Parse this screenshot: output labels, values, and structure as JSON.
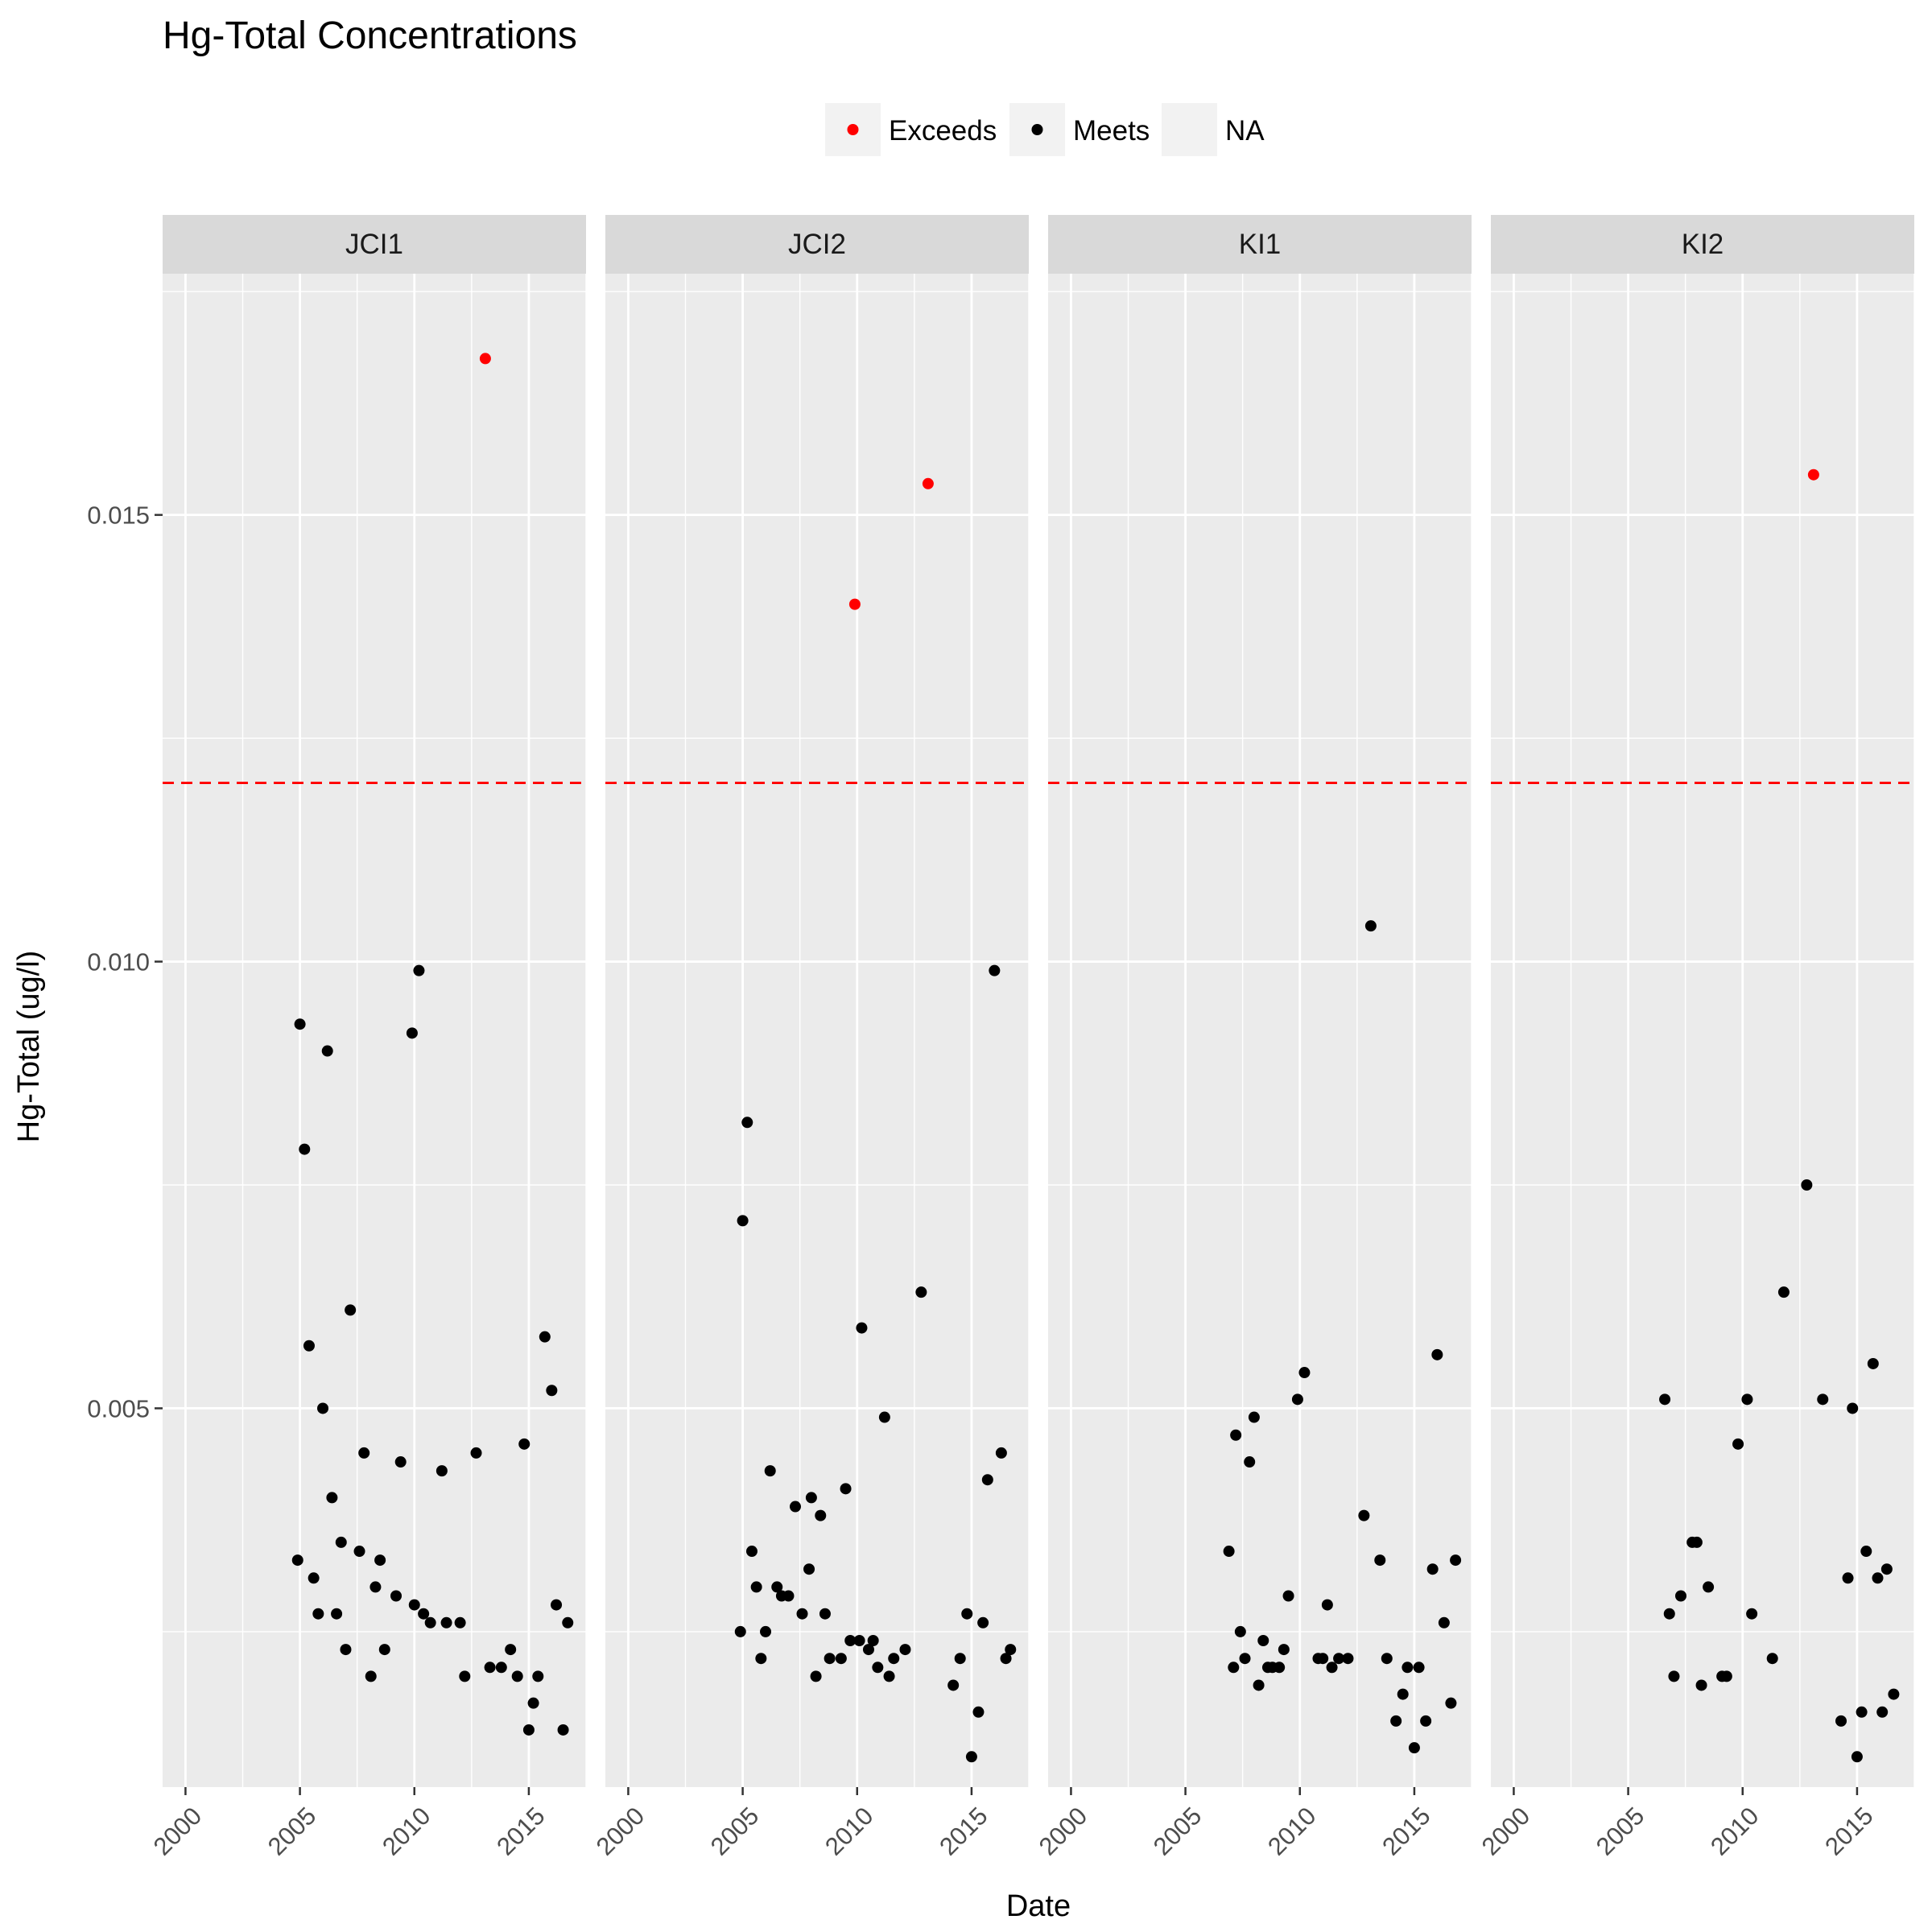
{
  "chart_data": {
    "type": "scatter",
    "title": "Hg-Total Concentrations",
    "xlabel": "Date",
    "ylabel": "Hg-Total (ug/l)",
    "xlim": [
      1999,
      2017.5
    ],
    "ylim": [
      0.00076,
      0.0177
    ],
    "x_ticks": [
      2000,
      2005,
      2010,
      2015
    ],
    "y_ticks": [
      0.005,
      0.01,
      0.015
    ],
    "y_tick_labels": [
      "0.005",
      "0.010",
      "0.015"
    ],
    "threshold": 0.012,
    "grid": true,
    "legend": {
      "position": "top",
      "items": [
        {
          "label": "Exceeds",
          "color": "#ff0000"
        },
        {
          "label": "Meets",
          "color": "#000000"
        },
        {
          "label": "NA",
          "color": ""
        }
      ]
    },
    "panels": [
      {
        "name": "JCI1",
        "exceeds": [
          [
            2013.1,
            0.01675
          ]
        ],
        "meets": [
          [
            2004.9,
            0.0033
          ],
          [
            2005.0,
            0.0093
          ],
          [
            2005.2,
            0.0079
          ],
          [
            2005.4,
            0.0057
          ],
          [
            2005.6,
            0.0031
          ],
          [
            2005.8,
            0.0027
          ],
          [
            2006.0,
            0.005
          ],
          [
            2006.2,
            0.009
          ],
          [
            2006.4,
            0.004
          ],
          [
            2006.6,
            0.0027
          ],
          [
            2006.8,
            0.0035
          ],
          [
            2007.0,
            0.0023
          ],
          [
            2007.2,
            0.0061
          ],
          [
            2007.6,
            0.0034
          ],
          [
            2007.8,
            0.0045
          ],
          [
            2008.1,
            0.002
          ],
          [
            2008.3,
            0.003
          ],
          [
            2008.5,
            0.0033
          ],
          [
            2008.7,
            0.0023
          ],
          [
            2009.2,
            0.0029
          ],
          [
            2009.4,
            0.0044
          ],
          [
            2009.9,
            0.0092
          ],
          [
            2010.0,
            0.0028
          ],
          [
            2010.2,
            0.0099
          ],
          [
            2010.4,
            0.0027
          ],
          [
            2010.7,
            0.0026
          ],
          [
            2011.2,
            0.0043
          ],
          [
            2011.4,
            0.0026
          ],
          [
            2012.0,
            0.0026
          ],
          [
            2012.2,
            0.002
          ],
          [
            2012.7,
            0.0045
          ],
          [
            2013.3,
            0.0021
          ],
          [
            2013.8,
            0.0021
          ],
          [
            2014.2,
            0.0023
          ],
          [
            2014.5,
            0.002
          ],
          [
            2014.8,
            0.0046
          ],
          [
            2015.0,
            0.0014
          ],
          [
            2015.2,
            0.0017
          ],
          [
            2015.4,
            0.002
          ],
          [
            2015.7,
            0.0058
          ],
          [
            2016.0,
            0.0052
          ],
          [
            2016.2,
            0.0028
          ],
          [
            2016.5,
            0.0014
          ],
          [
            2016.7,
            0.0026
          ]
        ]
      },
      {
        "name": "JCI2",
        "exceeds": [
          [
            2009.9,
            0.014
          ],
          [
            2013.1,
            0.01535
          ]
        ],
        "meets": [
          [
            2004.9,
            0.0025
          ],
          [
            2005.0,
            0.0071
          ],
          [
            2005.2,
            0.0082
          ],
          [
            2005.4,
            0.0034
          ],
          [
            2005.6,
            0.003
          ],
          [
            2005.8,
            0.0022
          ],
          [
            2006.0,
            0.0025
          ],
          [
            2006.2,
            0.0043
          ],
          [
            2006.5,
            0.003
          ],
          [
            2006.7,
            0.0029
          ],
          [
            2007.0,
            0.0029
          ],
          [
            2007.3,
            0.0039
          ],
          [
            2007.6,
            0.0027
          ],
          [
            2007.9,
            0.0032
          ],
          [
            2008.0,
            0.004
          ],
          [
            2008.2,
            0.002
          ],
          [
            2008.4,
            0.0038
          ],
          [
            2008.6,
            0.0027
          ],
          [
            2008.8,
            0.0022
          ],
          [
            2009.3,
            0.0022
          ],
          [
            2009.5,
            0.0041
          ],
          [
            2009.7,
            0.0024
          ],
          [
            2010.1,
            0.0024
          ],
          [
            2010.2,
            0.0059
          ],
          [
            2010.5,
            0.0023
          ],
          [
            2010.7,
            0.0024
          ],
          [
            2010.9,
            0.0021
          ],
          [
            2011.2,
            0.0049
          ],
          [
            2011.4,
            0.002
          ],
          [
            2011.6,
            0.0022
          ],
          [
            2012.1,
            0.0023
          ],
          [
            2012.8,
            0.0063
          ],
          [
            2014.2,
            0.0019
          ],
          [
            2014.5,
            0.0022
          ],
          [
            2014.8,
            0.0027
          ],
          [
            2015.0,
            0.0011
          ],
          [
            2015.3,
            0.0016
          ],
          [
            2015.5,
            0.0026
          ],
          [
            2015.7,
            0.0042
          ],
          [
            2016.0,
            0.0099
          ],
          [
            2016.3,
            0.0045
          ],
          [
            2016.5,
            0.0022
          ],
          [
            2016.7,
            0.0023
          ]
        ]
      },
      {
        "name": "KI1",
        "exceeds": [],
        "meets": [
          [
            2006.9,
            0.0034
          ],
          [
            2007.1,
            0.0021
          ],
          [
            2007.2,
            0.0047
          ],
          [
            2007.4,
            0.0025
          ],
          [
            2007.6,
            0.0022
          ],
          [
            2007.8,
            0.0044
          ],
          [
            2008.0,
            0.0049
          ],
          [
            2008.2,
            0.0019
          ],
          [
            2008.4,
            0.0024
          ],
          [
            2008.6,
            0.0021
          ],
          [
            2008.8,
            0.0021
          ],
          [
            2009.1,
            0.0021
          ],
          [
            2009.3,
            0.0023
          ],
          [
            2009.5,
            0.0029
          ],
          [
            2009.9,
            0.0051
          ],
          [
            2010.2,
            0.0054
          ],
          [
            2010.8,
            0.0022
          ],
          [
            2011.0,
            0.0022
          ],
          [
            2011.2,
            0.0028
          ],
          [
            2011.4,
            0.0021
          ],
          [
            2011.7,
            0.0022
          ],
          [
            2012.1,
            0.0022
          ],
          [
            2012.8,
            0.0038
          ],
          [
            2013.1,
            0.0104
          ],
          [
            2013.5,
            0.0033
          ],
          [
            2013.8,
            0.0022
          ],
          [
            2014.2,
            0.0015
          ],
          [
            2014.5,
            0.0018
          ],
          [
            2014.7,
            0.0021
          ],
          [
            2015.0,
            0.0012
          ],
          [
            2015.2,
            0.0021
          ],
          [
            2015.5,
            0.0015
          ],
          [
            2015.8,
            0.0032
          ],
          [
            2016.0,
            0.0056
          ],
          [
            2016.3,
            0.0026
          ],
          [
            2016.6,
            0.0017
          ],
          [
            2016.8,
            0.0033
          ]
        ]
      },
      {
        "name": "KI2",
        "exceeds": [
          [
            2013.1,
            0.01545
          ]
        ],
        "meets": [
          [
            2006.6,
            0.0051
          ],
          [
            2006.8,
            0.0027
          ],
          [
            2007.0,
            0.002
          ],
          [
            2007.3,
            0.0029
          ],
          [
            2007.8,
            0.0035
          ],
          [
            2008.0,
            0.0035
          ],
          [
            2008.2,
            0.0019
          ],
          [
            2008.5,
            0.003
          ],
          [
            2009.1,
            0.002
          ],
          [
            2009.3,
            0.002
          ],
          [
            2009.8,
            0.0046
          ],
          [
            2010.2,
            0.0051
          ],
          [
            2010.4,
            0.0027
          ],
          [
            2011.3,
            0.0022
          ],
          [
            2011.8,
            0.0063
          ],
          [
            2012.8,
            0.0075
          ],
          [
            2013.5,
            0.0051
          ],
          [
            2014.3,
            0.0015
          ],
          [
            2014.6,
            0.0031
          ],
          [
            2014.8,
            0.005
          ],
          [
            2015.0,
            0.0011
          ],
          [
            2015.2,
            0.0016
          ],
          [
            2015.4,
            0.0034
          ],
          [
            2015.7,
            0.0055
          ],
          [
            2015.9,
            0.0031
          ],
          [
            2016.1,
            0.0016
          ],
          [
            2016.3,
            0.0032
          ],
          [
            2016.6,
            0.0018
          ]
        ]
      }
    ]
  }
}
